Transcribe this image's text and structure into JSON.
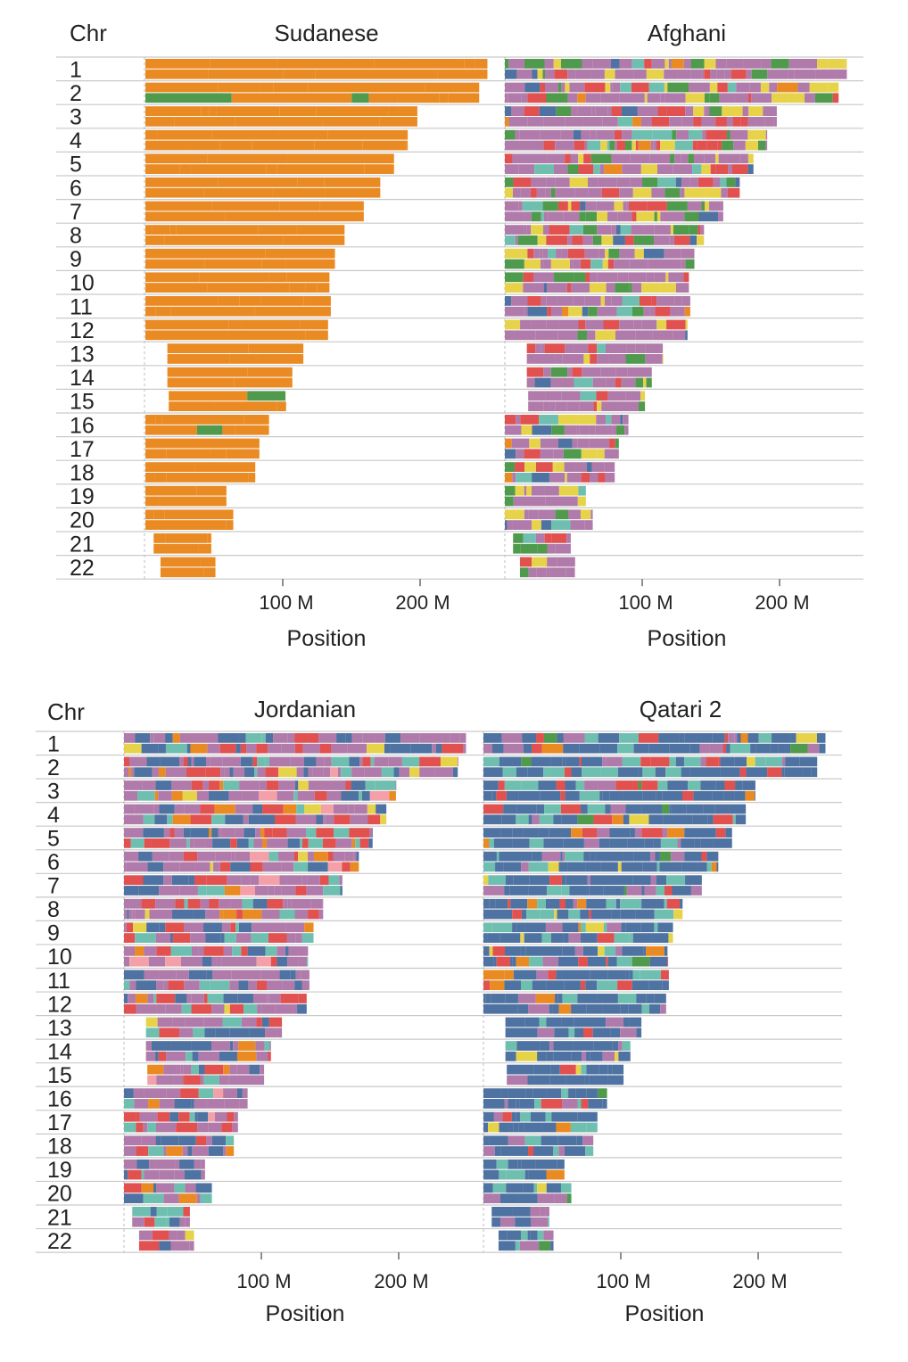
{
  "figure": {
    "chr_header": "Chr",
    "x_axis_label": "Position",
    "chromosomes": [
      "1",
      "2",
      "3",
      "4",
      "5",
      "6",
      "7",
      "8",
      "9",
      "10",
      "11",
      "12",
      "13",
      "14",
      "15",
      "16",
      "17",
      "18",
      "19",
      "20",
      "21",
      "22"
    ]
  },
  "chart_data": [
    {
      "type": "local-ancestry-ideogram",
      "title": "Sudanese",
      "xlabel": "Position",
      "ylabel": "Chr",
      "x_ticks": [
        {
          "value": 100,
          "label": "100 M"
        },
        {
          "value": 200,
          "label": "200 M"
        }
      ],
      "xlim": [
        0,
        260
      ],
      "chromosome_range_Mb": [
        [
          0,
          249
        ],
        [
          0,
          243
        ],
        [
          0,
          198
        ],
        [
          0,
          191
        ],
        [
          0,
          181
        ],
        [
          0,
          171
        ],
        [
          0,
          159
        ],
        [
          0,
          145
        ],
        [
          0,
          138
        ],
        [
          0,
          134
        ],
        [
          0,
          135
        ],
        [
          0,
          133
        ],
        [
          16,
          115
        ],
        [
          16,
          107
        ],
        [
          17,
          102
        ],
        [
          0,
          90
        ],
        [
          0,
          83
        ],
        [
          0,
          80
        ],
        [
          0,
          59
        ],
        [
          0,
          64
        ],
        [
          6,
          48
        ],
        [
          11,
          51
        ]
      ],
      "dominant_ancestry": "orange",
      "ancestry_palette": [
        "#ea8a23",
        "#4f9a4c",
        "#3f6b9a"
      ],
      "ancestry_weights": [
        0.985,
        0.01,
        0.005
      ]
    },
    {
      "type": "local-ancestry-ideogram",
      "title": "Afghani",
      "xlabel": "Position",
      "ylabel": "Chr",
      "x_ticks": [
        {
          "value": 100,
          "label": "100 M"
        },
        {
          "value": 200,
          "label": "200 M"
        }
      ],
      "xlim": [
        0,
        260
      ],
      "chromosome_range_Mb": [
        [
          0,
          249
        ],
        [
          0,
          243
        ],
        [
          0,
          198
        ],
        [
          0,
          191
        ],
        [
          0,
          181
        ],
        [
          0,
          171
        ],
        [
          0,
          159
        ],
        [
          0,
          145
        ],
        [
          0,
          138
        ],
        [
          0,
          134
        ],
        [
          0,
          135
        ],
        [
          0,
          133
        ],
        [
          16,
          115
        ],
        [
          16,
          107
        ],
        [
          17,
          102
        ],
        [
          0,
          90
        ],
        [
          0,
          83
        ],
        [
          0,
          80
        ],
        [
          0,
          59
        ],
        [
          0,
          64
        ],
        [
          6,
          48
        ],
        [
          11,
          51
        ]
      ],
      "dominant_ancestry": "purple",
      "ancestry_palette": [
        "#b07aaa",
        "#e7d34a",
        "#e0514f",
        "#4f9a4c",
        "#4e72a1",
        "#6fbfb0",
        "#ea8a23"
      ],
      "ancestry_weights": [
        0.55,
        0.13,
        0.12,
        0.1,
        0.04,
        0.04,
        0.02
      ]
    },
    {
      "type": "local-ancestry-ideogram",
      "title": "Jordanian",
      "xlabel": "Position",
      "ylabel": "Chr",
      "x_ticks": [
        {
          "value": 100,
          "label": "100 M"
        },
        {
          "value": 200,
          "label": "200 M"
        }
      ],
      "xlim": [
        0,
        260
      ],
      "chromosome_range_Mb": [
        [
          0,
          249
        ],
        [
          0,
          243
        ],
        [
          0,
          198
        ],
        [
          0,
          191
        ],
        [
          0,
          181
        ],
        [
          0,
          171
        ],
        [
          0,
          159
        ],
        [
          0,
          145
        ],
        [
          0,
          138
        ],
        [
          0,
          134
        ],
        [
          0,
          135
        ],
        [
          0,
          133
        ],
        [
          16,
          115
        ],
        [
          16,
          107
        ],
        [
          17,
          102
        ],
        [
          0,
          90
        ],
        [
          0,
          83
        ],
        [
          0,
          80
        ],
        [
          0,
          59
        ],
        [
          0,
          64
        ],
        [
          6,
          48
        ],
        [
          11,
          51
        ]
      ],
      "dominant_ancestry": "purple",
      "ancestry_palette": [
        "#b07aaa",
        "#e0514f",
        "#4e72a1",
        "#6fbfb0",
        "#ea8a23",
        "#e7d34a",
        "#f4a0a8"
      ],
      "ancestry_weights": [
        0.45,
        0.18,
        0.16,
        0.1,
        0.05,
        0.04,
        0.02
      ]
    },
    {
      "type": "local-ancestry-ideogram",
      "title": "Qatari 2",
      "xlabel": "Position",
      "ylabel": "Chr",
      "x_ticks": [
        {
          "value": 100,
          "label": "100 M"
        },
        {
          "value": 200,
          "label": "200 M"
        }
      ],
      "xlim": [
        0,
        260
      ],
      "chromosome_range_Mb": [
        [
          0,
          249
        ],
        [
          0,
          243
        ],
        [
          0,
          198
        ],
        [
          0,
          191
        ],
        [
          0,
          181
        ],
        [
          0,
          171
        ],
        [
          0,
          159
        ],
        [
          0,
          145
        ],
        [
          0,
          138
        ],
        [
          0,
          134
        ],
        [
          0,
          135
        ],
        [
          0,
          133
        ],
        [
          16,
          115
        ],
        [
          16,
          107
        ],
        [
          17,
          102
        ],
        [
          0,
          90
        ],
        [
          0,
          83
        ],
        [
          0,
          80
        ],
        [
          0,
          59
        ],
        [
          0,
          64
        ],
        [
          6,
          48
        ],
        [
          11,
          51
        ]
      ],
      "dominant_ancestry": "blue",
      "ancestry_palette": [
        "#4e72a1",
        "#6fbfb0",
        "#b07aaa",
        "#e0514f",
        "#ea8a23",
        "#e7d34a",
        "#4f9a4c"
      ],
      "ancestry_weights": [
        0.6,
        0.15,
        0.1,
        0.07,
        0.03,
        0.03,
        0.02
      ]
    }
  ]
}
